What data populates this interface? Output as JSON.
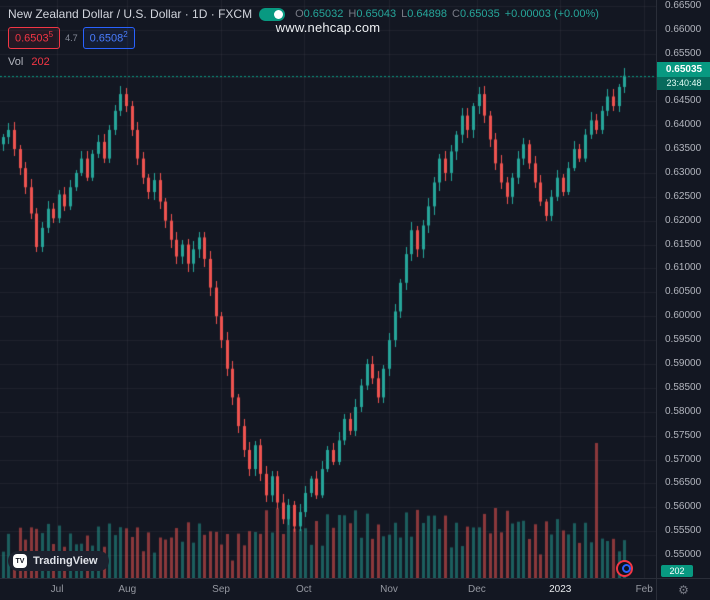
{
  "header": {
    "symbol_title": "New Zealand Dollar / U.S. Dollar · 1D · FXCM",
    "ohlc": {
      "o_label": "O",
      "o": "0.65032",
      "h_label": "H",
      "h": "0.65043",
      "l_label": "L",
      "l": "0.64898",
      "c_label": "C",
      "c": "0.65035",
      "change": "+0.00003 (+0.00%)"
    },
    "sell_price": "0.6503",
    "sell_sup": "5",
    "spread": "4.7",
    "buy_price": "0.6508",
    "buy_sup": "2",
    "vol_label": "Vol",
    "vol_value": "202"
  },
  "watermark": "www.nehcap.com",
  "footer": {
    "logo_mark": "TV",
    "logo_text": "TradingView",
    "settings_icon": "⚙"
  },
  "price_axis": {
    "top_price": 0.6662,
    "bottom_price": 0.5452,
    "labels": [
      "0.66500",
      "0.66000",
      "0.65500",
      "0.65000",
      "0.64500",
      "0.64000",
      "0.63500",
      "0.63000",
      "0.62500",
      "0.62000",
      "0.61500",
      "0.61000",
      "0.60500",
      "0.60000",
      "0.59500",
      "0.59000",
      "0.58500",
      "0.58000",
      "0.57500",
      "0.57000",
      "0.56500",
      "0.56000",
      "0.55500",
      "0.55000",
      "0.54500"
    ],
    "current": {
      "price": "0.65035",
      "countdown": "23:40:48",
      "value": 0.65035
    }
  },
  "time_axis": {
    "labels": [
      {
        "text": "Jul",
        "f": 0.087
      },
      {
        "text": "Aug",
        "f": 0.194
      },
      {
        "text": "Sep",
        "f": 0.337
      },
      {
        "text": "Oct",
        "f": 0.463
      },
      {
        "text": "Nov",
        "f": 0.593
      },
      {
        "text": "Dec",
        "f": 0.727
      },
      {
        "text": "2023",
        "f": 0.854,
        "major": true
      },
      {
        "text": "Feb",
        "f": 0.982
      }
    ]
  },
  "volume_badge": "202",
  "colors": {
    "background": "#131722",
    "up": "#26a69a",
    "down": "#ef5350",
    "accent_green": "#089981",
    "accent_red": "#f23645",
    "accent_blue": "#2962ff",
    "grid": "rgba(134,139,152,0.10)",
    "axis_text": "#b2b5be"
  },
  "chart_data": {
    "type": "candlestick",
    "title": "New Zealand Dollar / U.S. Dollar",
    "symbol": "NZDUSD",
    "interval": "1D",
    "exchange": "FXCM",
    "y_range": [
      0.5452,
      0.6662
    ],
    "x_range_months": [
      "Jul",
      "Aug",
      "Sep",
      "Oct",
      "Nov",
      "Dec",
      "2023",
      "Feb"
    ],
    "grid": true,
    "last_ohlc": {
      "open": 0.65032,
      "high": 0.65043,
      "low": 0.64898,
      "close": 0.65035
    },
    "first_open": 0.636,
    "closes": [
      0.6375,
      0.639,
      0.635,
      0.631,
      0.627,
      0.6215,
      0.6145,
      0.6185,
      0.6225,
      0.6205,
      0.6255,
      0.623,
      0.627,
      0.63,
      0.633,
      0.629,
      0.634,
      0.6365,
      0.633,
      0.639,
      0.643,
      0.6465,
      0.644,
      0.639,
      0.633,
      0.629,
      0.626,
      0.6285,
      0.624,
      0.62,
      0.616,
      0.6125,
      0.615,
      0.611,
      0.614,
      0.6165,
      0.612,
      0.606,
      0.6,
      0.595,
      0.589,
      0.583,
      0.577,
      0.572,
      0.568,
      0.573,
      0.567,
      0.5625,
      0.5665,
      0.561,
      0.5575,
      0.5605,
      0.556,
      0.559,
      0.563,
      0.566,
      0.5625,
      0.568,
      0.572,
      0.5695,
      0.574,
      0.5785,
      0.576,
      0.581,
      0.5855,
      0.59,
      0.587,
      0.583,
      0.589,
      0.595,
      0.601,
      0.607,
      0.613,
      0.618,
      0.614,
      0.619,
      0.623,
      0.628,
      0.633,
      0.63,
      0.6345,
      0.638,
      0.642,
      0.639,
      0.644,
      0.6465,
      0.642,
      0.637,
      0.632,
      0.628,
      0.625,
      0.629,
      0.633,
      0.636,
      0.632,
      0.628,
      0.624,
      0.621,
      0.625,
      0.629,
      0.626,
      0.631,
      0.635,
      0.633,
      0.638,
      0.641,
      0.639,
      0.643,
      0.646,
      0.644,
      0.648,
      0.65035
    ],
    "volume": {
      "axis_max": 800,
      "current": 202,
      "spike_index": 106,
      "spike_value": 720
    },
    "current_price_line": 0.65035
  }
}
